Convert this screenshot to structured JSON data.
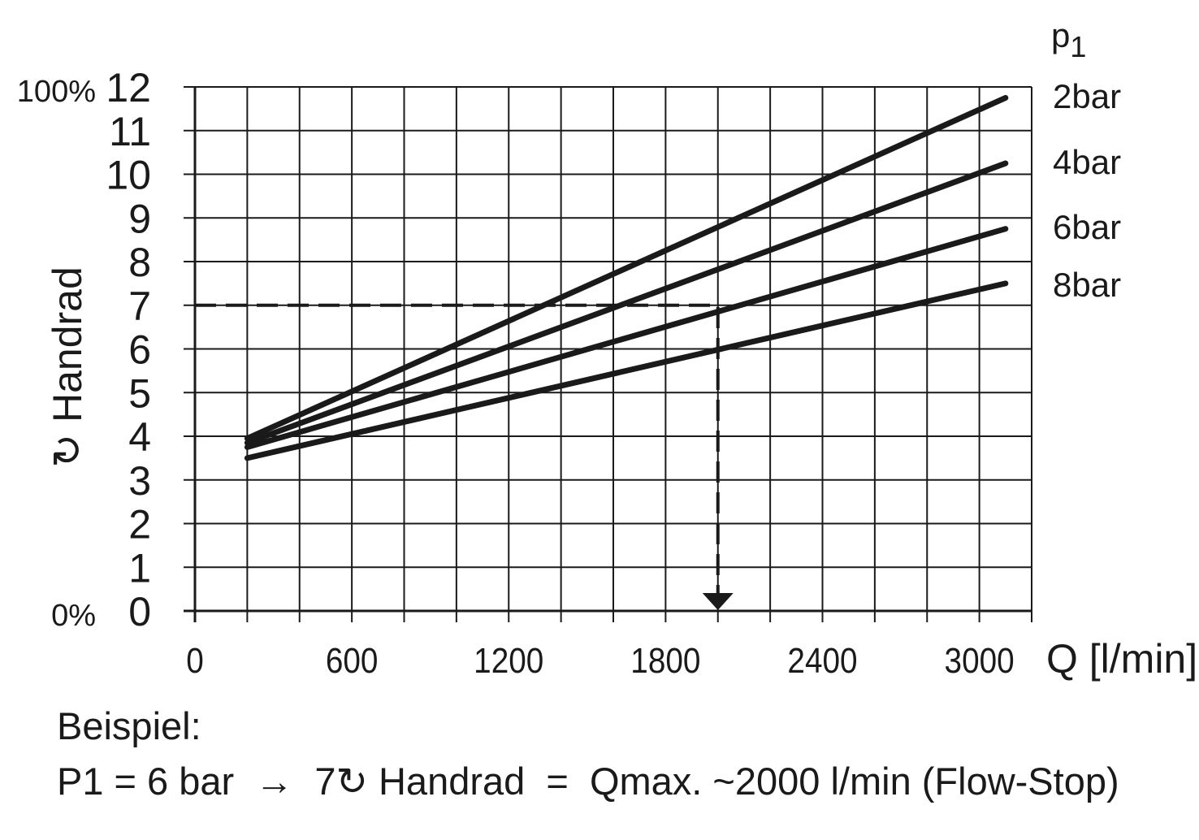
{
  "chart_data": {
    "type": "line",
    "title": "",
    "xlabel": "Q [l/min]",
    "ylabel": "↻ Handrad",
    "xlim": [
      0,
      3200
    ],
    "ylim": [
      0,
      12
    ],
    "x_ticks": [
      0,
      600,
      1200,
      1800,
      2400,
      3000
    ],
    "y_ticks": [
      0,
      1,
      2,
      3,
      4,
      5,
      6,
      7,
      8,
      9,
      10,
      11,
      12
    ],
    "y_percent_labels": [
      {
        "value": 12,
        "label": "100%"
      },
      {
        "value": 0,
        "label": "0%"
      }
    ],
    "grid": true,
    "legend_title": "p1",
    "legend_placement": "right",
    "series": [
      {
        "name": "2bar",
        "x": [
          200,
          3100
        ],
        "y": [
          3.95,
          11.75
        ]
      },
      {
        "name": "4bar",
        "x": [
          200,
          3100
        ],
        "y": [
          3.85,
          10.25
        ]
      },
      {
        "name": "6bar",
        "x": [
          200,
          3100
        ],
        "y": [
          3.75,
          8.75
        ]
      },
      {
        "name": "8bar",
        "x": [
          200,
          3100
        ],
        "y": [
          3.5,
          7.5
        ]
      }
    ],
    "annotation": {
      "type": "dashed-guide",
      "y": 7,
      "x": 2000,
      "arrow": "down"
    },
    "example_title": "Beispiel:",
    "example_text": "P1 = 6 bar  →  7↻ Handrad  =  Qmax. ~2000 l/min (Flow-Stop)"
  }
}
